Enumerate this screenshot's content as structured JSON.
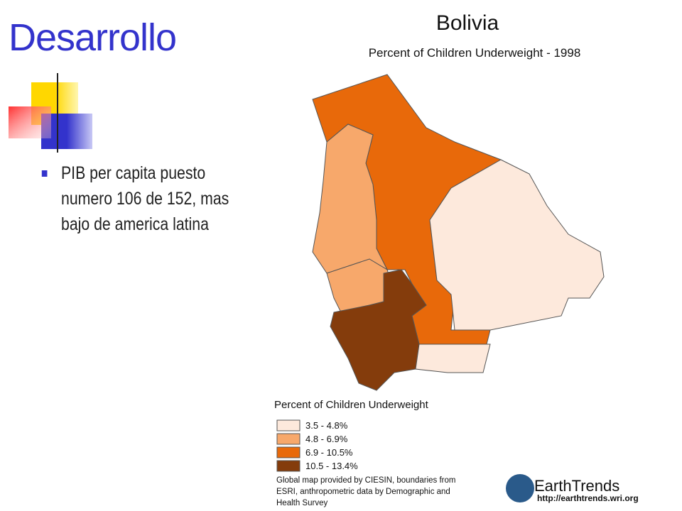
{
  "slide": {
    "title": "Desarrollo",
    "bullet": "PIB per capita puesto numero 106 de 152, mas bajo de america latina"
  },
  "map": {
    "title": "Bolivia",
    "subtitle": "Percent of Children Underweight - 1998",
    "legend": {
      "title": "Percent of Children Underweight",
      "items": [
        {
          "label": "3.5 - 4.8%",
          "color": "#fde9dc"
        },
        {
          "label": "4.8 - 6.9%",
          "color": "#f7a86b"
        },
        {
          "label": "6.9 - 10.5%",
          "color": "#e8690a"
        },
        {
          "label": "10.5 - 13.4%",
          "color": "#843c0c"
        }
      ]
    },
    "credit": "Global map provided by CIESIN, boundaries from ESRI, anthropometric data by Demographic and Health Survey",
    "brand": "EarthTrends",
    "url": "http://earthtrends.wri.org"
  }
}
